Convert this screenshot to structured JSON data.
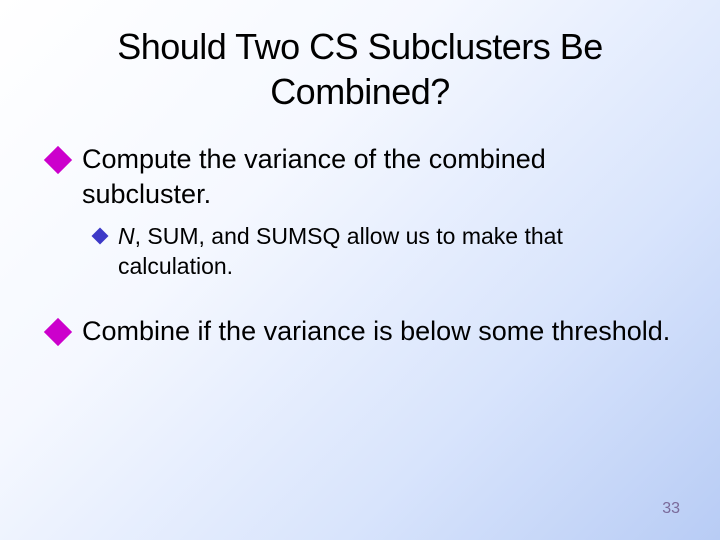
{
  "slide": {
    "title": "Should Two CS Subclusters Be Combined?",
    "bullets": [
      {
        "level": 1,
        "text": "Compute the variance of the combined subcluster."
      },
      {
        "level": 2,
        "italic_lead": "N",
        "text_rest": ", SUM, and SUMSQ allow us to make that calculation."
      },
      {
        "level": 1,
        "text": "Combine if the variance is below some threshold."
      }
    ],
    "page_number": "33"
  },
  "style": {
    "background_gradient": [
      "#ffffff",
      "#f5f8ff",
      "#d8e4fc",
      "#b8ccf5"
    ],
    "title_color": "#000000",
    "title_fontsize": 36,
    "body_color": "#000000",
    "l1_fontsize": 27,
    "l2_fontsize": 23,
    "l1_marker_color": "#cc00cc",
    "l1_marker_size": 20,
    "l2_marker_color": "#3d39c7",
    "l2_marker_size": 12,
    "page_num_color": "#7a6a9a",
    "page_num_fontsize": 16,
    "font_family": "Verdana"
  }
}
